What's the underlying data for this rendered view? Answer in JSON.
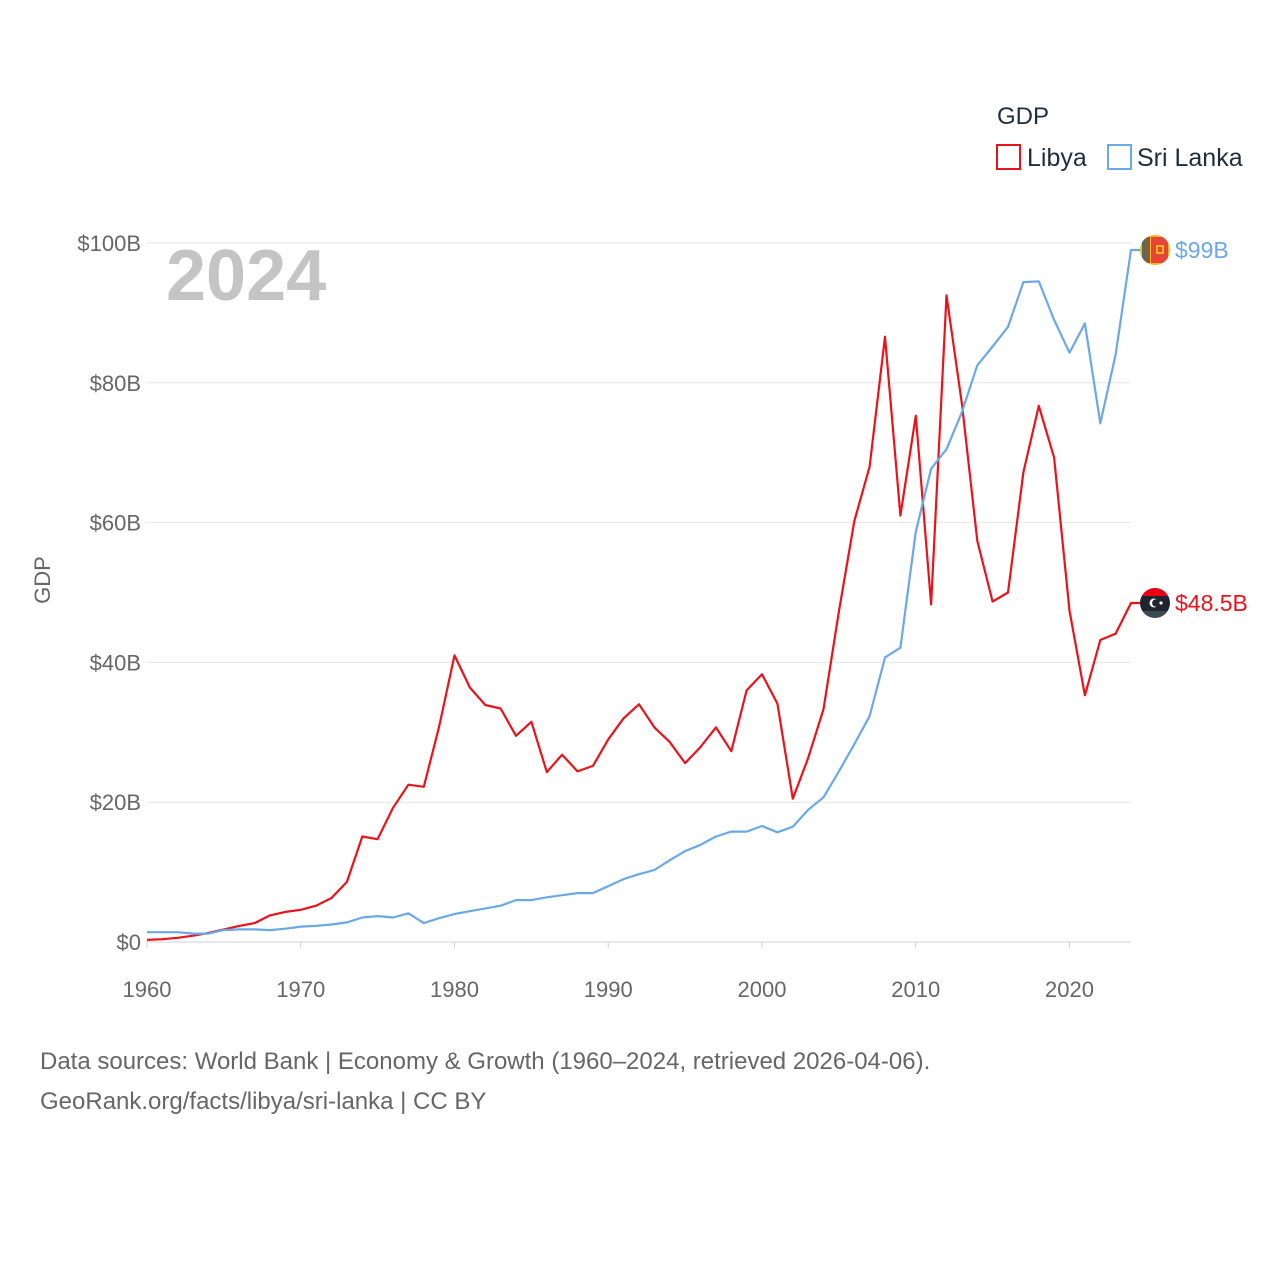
{
  "chart_data": {
    "type": "line",
    "legend_title": "GDP",
    "legend_position": "top-right",
    "ylabel": "GDP",
    "year_label": "2024",
    "ylim": [
      0,
      100
    ],
    "xlim": [
      1960,
      2024
    ],
    "x_ticks": [
      "1960",
      "1970",
      "1980",
      "1990",
      "2000",
      "2010",
      "2020"
    ],
    "y_ticks": [
      "$0",
      "$20B",
      "$40B",
      "$60B",
      "$80B",
      "$100B"
    ],
    "y_tick_values": [
      0,
      20,
      40,
      60,
      80,
      100
    ],
    "x_tick_values": [
      1960,
      1970,
      1980,
      1990,
      2000,
      2010,
      2020
    ],
    "grid": true,
    "x": [
      1960,
      1961,
      1962,
      1963,
      1964,
      1965,
      1966,
      1967,
      1968,
      1969,
      1970,
      1971,
      1972,
      1973,
      1974,
      1975,
      1976,
      1977,
      1978,
      1979,
      1980,
      1981,
      1982,
      1983,
      1984,
      1985,
      1986,
      1987,
      1988,
      1989,
      1990,
      1991,
      1992,
      1993,
      1994,
      1995,
      1996,
      1997,
      1998,
      1999,
      2000,
      2001,
      2002,
      2003,
      2004,
      2005,
      2006,
      2007,
      2008,
      2009,
      2010,
      2011,
      2012,
      2013,
      2014,
      2015,
      2016,
      2017,
      2018,
      2019,
      2020,
      2021,
      2022,
      2023,
      2024
    ],
    "series": [
      {
        "name": "Libya",
        "color": "#e8131b",
        "end_label": "$48.5B",
        "values": [
          0.3,
          0.4,
          0.6,
          0.9,
          1.3,
          1.8,
          2.3,
          2.7,
          3.8,
          4.3,
          4.6,
          5.2,
          6.3,
          8.6,
          15.1,
          14.7,
          19.2,
          22.5,
          22.2,
          30.8,
          41.0,
          36.4,
          33.9,
          33.4,
          29.5,
          31.5,
          24.3,
          26.8,
          24.4,
          25.2,
          29.0,
          32.0,
          34.0,
          30.7,
          28.6,
          25.6,
          27.9,
          30.7,
          27.3,
          36.0,
          38.3,
          34.1,
          20.5,
          26.3,
          33.3,
          47.3,
          60.2,
          68.0,
          86.6,
          61.0,
          75.3,
          48.3,
          92.5,
          77.0,
          57.4,
          48.7,
          50.0,
          67.2,
          76.7,
          69.3,
          47.4,
          35.3,
          43.2,
          44.1,
          48.5
        ]
      },
      {
        "name": "Sri Lanka",
        "color": "#6aa9e6",
        "end_label": "$99B",
        "values": [
          1.4,
          1.4,
          1.4,
          1.2,
          1.2,
          1.7,
          1.8,
          1.8,
          1.7,
          1.9,
          2.2,
          2.3,
          2.5,
          2.8,
          3.5,
          3.7,
          3.5,
          4.1,
          2.7,
          3.4,
          4.0,
          4.4,
          4.8,
          5.2,
          6.0,
          6.0,
          6.4,
          6.7,
          7.0,
          7.0,
          8.0,
          9.0,
          9.7,
          10.3,
          11.7,
          13.0,
          13.9,
          15.1,
          15.8,
          15.8,
          16.6,
          15.7,
          16.5,
          18.9,
          20.7,
          24.4,
          28.3,
          32.3,
          40.7,
          42.1,
          58.7,
          67.7,
          70.5,
          75.8,
          82.5,
          85.2,
          88.0,
          94.4,
          94.5,
          89.0,
          84.3,
          88.5,
          74.2,
          84.0,
          99.0
        ]
      }
    ],
    "source_line1": "Data sources: World Bank | Economy & Growth (1960–2024, retrieved 2026-04-06).",
    "source_line2": "GeoRank.org/facts/libya/sri-lanka | CC BY"
  }
}
